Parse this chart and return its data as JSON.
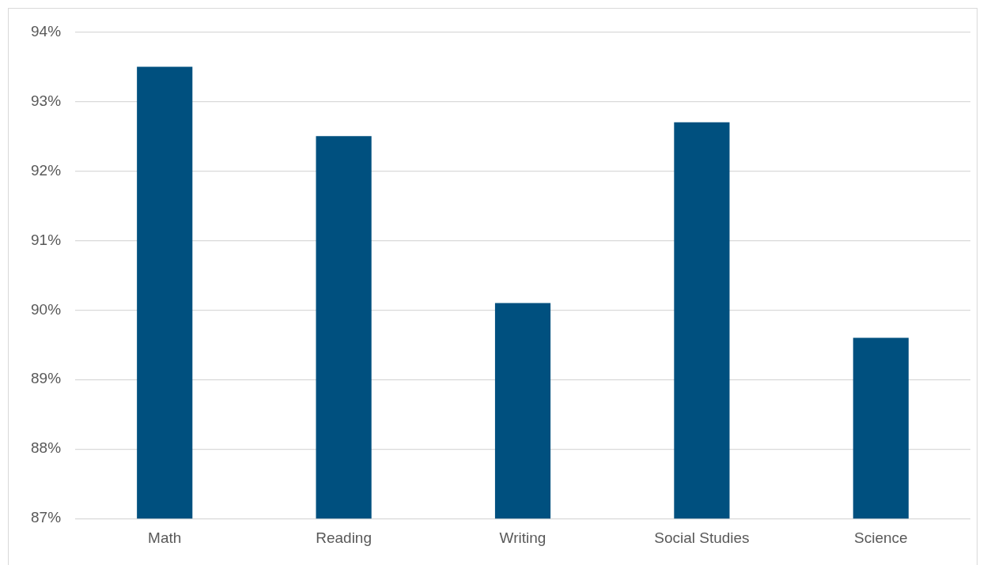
{
  "chart_data": {
    "type": "bar",
    "categories": [
      "Math",
      "Reading",
      "Writing",
      "Social Studies",
      "Science"
    ],
    "values": [
      93.5,
      92.5,
      90.1,
      92.7,
      89.6
    ],
    "color": "#00507f",
    "ylim": [
      87,
      94
    ],
    "yticks": [
      {
        "value": 87,
        "label": "87%"
      },
      {
        "value": 88,
        "label": "88%"
      },
      {
        "value": 89,
        "label": "89%"
      },
      {
        "value": 90,
        "label": "90%"
      },
      {
        "value": 91,
        "label": "91%"
      },
      {
        "value": 92,
        "label": "92%"
      },
      {
        "value": 93,
        "label": "93%"
      },
      {
        "value": 94,
        "label": "94%"
      }
    ],
    "grid": "y"
  }
}
